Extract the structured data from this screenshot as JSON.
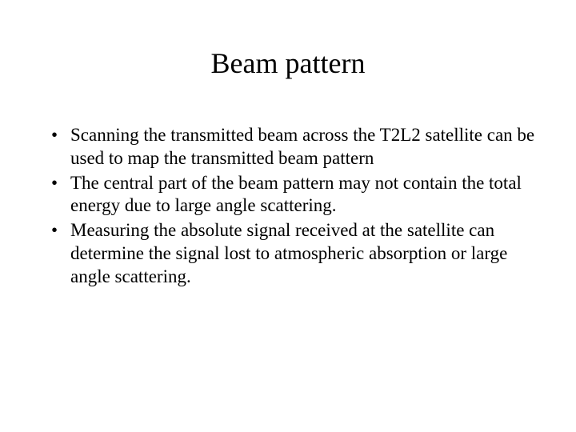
{
  "slide": {
    "title": "Beam pattern",
    "bullets": [
      "Scanning the transmitted beam across the T2L2 satellite can be used to map the transmitted beam pattern",
      "The central part of the beam pattern may not contain the total energy due to large angle scattering.",
      "Measuring the absolute signal received at the satellite can determine the signal lost to atmospheric absorption or large angle scattering."
    ]
  },
  "styling": {
    "background_color": "#ffffff",
    "text_color": "#000000",
    "font_family": "Times New Roman",
    "title_fontsize": 36,
    "body_fontsize": 23
  }
}
